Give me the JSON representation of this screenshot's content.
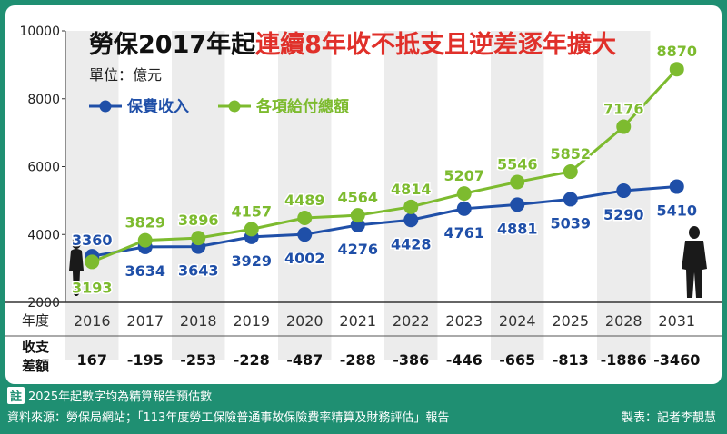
{
  "chart_data": {
    "type": "line",
    "title_main": "勞保2017年起",
    "title_highlight": "連續8年收不抵支且逆差逐年擴大",
    "unit": "單位：億元",
    "ylim": [
      2000,
      10000
    ],
    "yticks": [
      "2000",
      "4000",
      "6000",
      "8000",
      "10000"
    ],
    "xlabel": "年度",
    "categories": [
      "2016",
      "2017",
      "2018",
      "2019",
      "2020",
      "2021",
      "2022",
      "2023",
      "2024",
      "2025",
      "2028",
      "2031"
    ],
    "series": [
      {
        "name": "保費收入",
        "color": "#1f4fa8",
        "values": [
          3360,
          3634,
          3643,
          3929,
          4002,
          4276,
          4428,
          4761,
          4881,
          5039,
          5290,
          5410
        ]
      },
      {
        "name": "各項給付總額",
        "color": "#7dbb2f",
        "values": [
          3193,
          3829,
          3896,
          4157,
          4489,
          4564,
          4814,
          5207,
          5546,
          5852,
          7176,
          8870
        ]
      }
    ],
    "diff_label_line1": "收支",
    "diff_label_line2": "差額",
    "diff": [
      "167",
      "-195",
      "-253",
      "-228",
      "-487",
      "-288",
      "-386",
      "-446",
      "-665",
      "-813",
      "-1886",
      "-3460"
    ]
  },
  "footer": {
    "note_badge": "註",
    "note": "2025年起數字均為精算報告預估數",
    "source": "資料來源：勞保局網站；「113年度勞工保險普通事故保險費率精算及財務評估」報告",
    "credit": "製表：記者李靚慧"
  }
}
